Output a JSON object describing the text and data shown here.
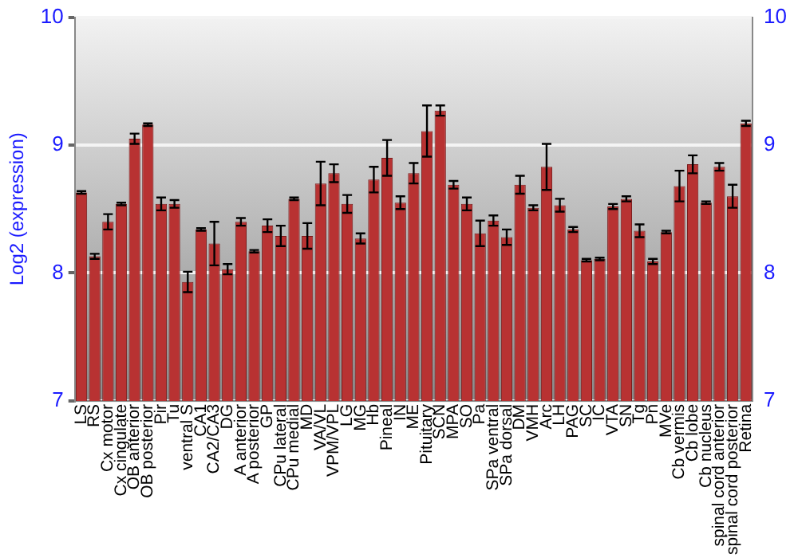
{
  "chart_data": {
    "type": "bar",
    "ylabel": "Log2 (expression)",
    "categories": [
      "LS",
      "RS",
      "Cx motor",
      "Cx cingulate",
      "OB anterior",
      "OB posterior",
      "Pir",
      "Tu",
      "ventral S",
      "CA1",
      "CA2/CA3",
      "DG",
      "A anterior",
      "A posterior",
      "GP",
      "CPu lateral",
      "CPu medial",
      "MD",
      "VA/VL",
      "VPM/VPL",
      "LG",
      "MG",
      "Hb",
      "Pineal",
      "IN",
      "ME",
      "Pituitary",
      "SCN",
      "MPA",
      "SO",
      "Pa",
      "SPa ventral",
      "SPa dorsal",
      "DM",
      "VMH",
      "Arc",
      "LH",
      "PAG",
      "SC",
      "IC",
      "VTA",
      "SN",
      "Tg",
      "Pn",
      "MVe",
      "Cb vermis",
      "Cb lobe",
      "Cb nucleus",
      "spinal cord anterior",
      "spinal cord posterior",
      "Retina"
    ],
    "values": [
      8.63,
      8.13,
      8.4,
      8.54,
      9.05,
      9.16,
      8.54,
      8.54,
      7.93,
      8.34,
      8.23,
      8.03,
      8.4,
      8.17,
      8.37,
      8.29,
      8.58,
      8.29,
      8.7,
      8.78,
      8.54,
      8.27,
      8.73,
      8.9,
      8.55,
      8.78,
      9.11,
      9.27,
      8.69,
      8.54,
      8.31,
      8.41,
      8.28,
      8.69,
      8.51,
      8.83,
      8.53,
      8.34,
      8.1,
      8.11,
      8.52,
      8.58,
      8.33,
      8.09,
      8.32,
      8.68,
      8.85,
      8.55,
      8.83,
      8.6,
      9.17
    ],
    "errors": [
      0.01,
      0.02,
      0.06,
      0.01,
      0.04,
      0.01,
      0.05,
      0.03,
      0.08,
      0.01,
      0.17,
      0.04,
      0.03,
      0.01,
      0.05,
      0.08,
      0.01,
      0.1,
      0.17,
      0.07,
      0.07,
      0.04,
      0.1,
      0.14,
      0.05,
      0.08,
      0.2,
      0.04,
      0.03,
      0.05,
      0.1,
      0.04,
      0.06,
      0.07,
      0.02,
      0.18,
      0.05,
      0.02,
      0.01,
      0.01,
      0.02,
      0.02,
      0.05,
      0.02,
      0.01,
      0.12,
      0.07,
      0.01,
      0.03,
      0.09,
      0.02
    ],
    "color": "#b83232",
    "ylim": [
      7,
      10
    ],
    "yticks": [
      7,
      8,
      9,
      10
    ],
    "y2lim": [
      7,
      10
    ],
    "y2ticks": [
      7,
      8,
      9,
      10
    ],
    "grid": "y",
    "legend": false
  }
}
